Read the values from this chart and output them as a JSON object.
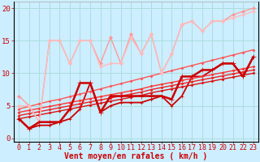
{
  "background_color": "#cceeff",
  "grid_color": "#aadddd",
  "xlabel": "Vent moyen/en rafales ( km/h )",
  "xlabel_color": "#cc0000",
  "xlabel_fontsize": 7,
  "tick_color": "#cc0000",
  "tick_fontsize": 6,
  "yticks": [
    0,
    5,
    10,
    15,
    20
  ],
  "xticks": [
    0,
    1,
    2,
    3,
    4,
    5,
    6,
    7,
    8,
    9,
    10,
    11,
    12,
    13,
    14,
    15,
    16,
    17,
    18,
    19,
    20,
    21,
    22,
    23
  ],
  "xlim": [
    -0.5,
    23.5
  ],
  "ylim": [
    -0.5,
    21
  ],
  "lines": [
    {
      "x": [
        0,
        1,
        2,
        3,
        4,
        5,
        6,
        7,
        8,
        9,
        10,
        11,
        12,
        13,
        14,
        15,
        16,
        17,
        18,
        19,
        20,
        21,
        22,
        23
      ],
      "y": [
        3.0,
        1.5,
        2.0,
        2.0,
        2.5,
        3.0,
        4.5,
        8.5,
        4.0,
        5.0,
        5.5,
        5.5,
        5.5,
        6.0,
        6.5,
        5.0,
        6.5,
        9.5,
        9.5,
        10.5,
        11.5,
        11.5,
        9.5,
        12.5
      ],
      "color": "#cc0000",
      "lw": 1.3,
      "marker": "+",
      "ms": 3.5,
      "alpha": 1.0
    },
    {
      "x": [
        0,
        1,
        2,
        3,
        4,
        5,
        6,
        7,
        8,
        9,
        10,
        11,
        12,
        13,
        14,
        15,
        16,
        17,
        18,
        19,
        20,
        21,
        22,
        23
      ],
      "y": [
        3.0,
        3.3,
        3.6,
        3.9,
        4.2,
        4.5,
        4.8,
        5.1,
        5.4,
        5.7,
        6.0,
        6.3,
        6.6,
        7.0,
        7.3,
        7.6,
        7.9,
        8.2,
        8.5,
        8.8,
        9.1,
        9.4,
        9.7,
        10.0
      ],
      "color": "#dd1111",
      "lw": 1.0,
      "marker": "D",
      "ms": 1.5,
      "alpha": 1.0
    },
    {
      "x": [
        0,
        1,
        2,
        3,
        4,
        5,
        6,
        7,
        8,
        9,
        10,
        11,
        12,
        13,
        14,
        15,
        16,
        17,
        18,
        19,
        20,
        21,
        22,
        23
      ],
      "y": [
        3.5,
        3.8,
        4.1,
        4.4,
        4.7,
        5.0,
        5.3,
        5.6,
        5.9,
        6.2,
        6.5,
        6.8,
        7.1,
        7.5,
        7.8,
        8.1,
        8.4,
        8.7,
        9.0,
        9.3,
        9.6,
        9.9,
        10.2,
        10.5
      ],
      "color": "#ee2222",
      "lw": 1.0,
      "marker": "D",
      "ms": 1.5,
      "alpha": 1.0
    },
    {
      "x": [
        0,
        1,
        2,
        3,
        4,
        5,
        6,
        7,
        8,
        9,
        10,
        11,
        12,
        13,
        14,
        15,
        16,
        17,
        18,
        19,
        20,
        21,
        22,
        23
      ],
      "y": [
        4.0,
        4.3,
        4.6,
        4.9,
        5.2,
        5.5,
        5.8,
        6.1,
        6.4,
        6.7,
        7.0,
        7.3,
        7.6,
        8.0,
        8.3,
        8.6,
        8.9,
        9.2,
        9.5,
        9.8,
        10.1,
        10.4,
        10.7,
        11.0
      ],
      "color": "#ff3333",
      "lw": 1.0,
      "marker": "D",
      "ms": 1.5,
      "alpha": 1.0
    },
    {
      "x": [
        0,
        1,
        2,
        3,
        4,
        5,
        6,
        7,
        8,
        9,
        10,
        11,
        12,
        13,
        14,
        15,
        16,
        17,
        18,
        19,
        20,
        21,
        22,
        23
      ],
      "y": [
        4.5,
        4.9,
        5.3,
        5.7,
        6.0,
        6.4,
        6.8,
        7.2,
        7.6,
        8.0,
        8.4,
        8.8,
        9.2,
        9.6,
        10.0,
        10.4,
        10.8,
        11.2,
        11.6,
        12.0,
        12.4,
        12.8,
        13.2,
        13.6
      ],
      "color": "#ff5555",
      "lw": 1.0,
      "marker": "D",
      "ms": 1.5,
      "alpha": 1.0
    },
    {
      "x": [
        0,
        1,
        2,
        3,
        4,
        5,
        6,
        7,
        8,
        9,
        10,
        11,
        12,
        13,
        14,
        15,
        16,
        17,
        18,
        19,
        20,
        21,
        22,
        23
      ],
      "y": [
        6.5,
        5.0,
        2.5,
        15.0,
        15.0,
        11.5,
        15.0,
        15.0,
        11.5,
        15.5,
        11.5,
        16.0,
        13.0,
        16.0,
        10.0,
        13.0,
        17.5,
        18.0,
        16.5,
        18.0,
        18.0,
        19.0,
        19.5,
        20.0
      ],
      "color": "#ff9999",
      "lw": 1.0,
      "marker": "D",
      "ms": 2.0,
      "alpha": 1.0
    },
    {
      "x": [
        0,
        1,
        2,
        3,
        4,
        5,
        6,
        7,
        8,
        9,
        10,
        11,
        12,
        13,
        14,
        15,
        16,
        17,
        18,
        19,
        20,
        21,
        22,
        23
      ],
      "y": [
        5.0,
        5.0,
        2.5,
        15.0,
        15.0,
        11.5,
        15.0,
        15.0,
        11.0,
        11.5,
        11.5,
        15.5,
        13.0,
        16.0,
        10.0,
        13.0,
        17.5,
        18.0,
        16.5,
        18.0,
        18.0,
        18.5,
        19.0,
        19.5
      ],
      "color": "#ffbbbb",
      "lw": 1.0,
      "marker": "D",
      "ms": 2.0,
      "alpha": 1.0
    },
    {
      "x": [
        0,
        1,
        2,
        3,
        4,
        5,
        6,
        7,
        8,
        9,
        10,
        11,
        12,
        13,
        14,
        15,
        16,
        17,
        18,
        19,
        20,
        21,
        22,
        23
      ],
      "y": [
        3.0,
        1.5,
        2.5,
        2.5,
        2.5,
        4.5,
        8.5,
        8.5,
        4.0,
        6.5,
        6.5,
        6.5,
        6.5,
        6.5,
        6.5,
        6.0,
        9.5,
        9.5,
        10.5,
        10.5,
        11.5,
        11.5,
        9.5,
        12.5
      ],
      "color": "#cc0000",
      "lw": 1.8,
      "marker": "+",
      "ms": 4.0,
      "alpha": 1.0
    }
  ],
  "bottom_symbols_color": "#cc0000",
  "ax_spine_color": "#888888"
}
